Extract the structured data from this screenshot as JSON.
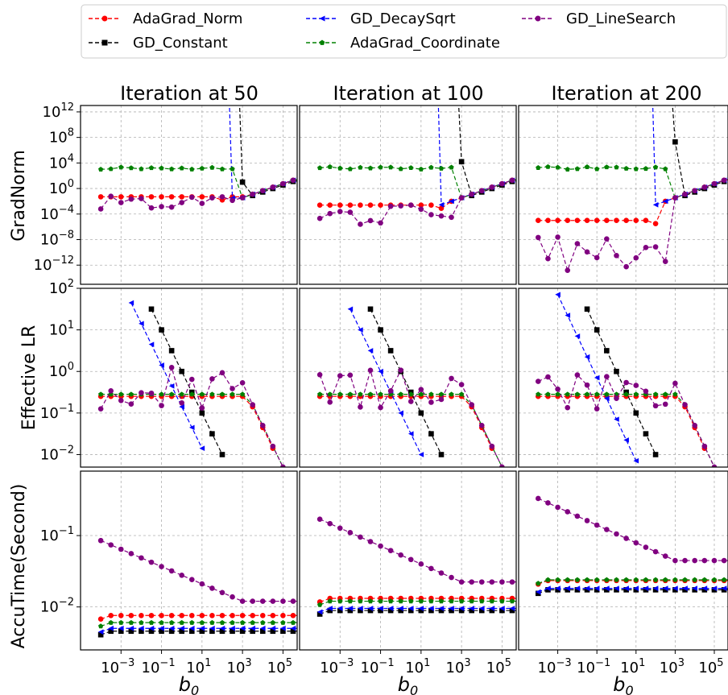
{
  "legend": [
    {
      "label": "AdaGrad_Norm",
      "color": "#ff0000",
      "marker": "circle"
    },
    {
      "label": "GD_DecaySqrt",
      "color": "#0000ff",
      "marker": "triangle-left"
    },
    {
      "label": "GD_LineSearch",
      "color": "#800080",
      "marker": "circle"
    },
    {
      "label": "GD_Constant",
      "color": "#000000",
      "marker": "square"
    },
    {
      "label": "AdaGrad_Coordinate",
      "color": "#008000",
      "marker": "pentagon"
    }
  ],
  "columns": [
    "Iteration at 50",
    "Iteration at 100",
    "Iteration at 200"
  ],
  "row_labels": [
    "GradNorm",
    "Effective LR",
    "AccuTime(Second)"
  ],
  "xlabel_base": "b",
  "xlabel_sub": "0",
  "xticks": [
    {
      "base": "10",
      "exp": "−3",
      "value": 0.001
    },
    {
      "base": "10",
      "exp": "−1",
      "value": 0.1
    },
    {
      "base": "10",
      "exp": "1",
      "value": 10
    },
    {
      "base": "10",
      "exp": "3",
      "value": 1000
    },
    {
      "base": "10",
      "exp": "5",
      "value": 100000
    }
  ],
  "yticks": {
    "grad": [
      {
        "base": "10",
        "exp": "12",
        "value": 1000000000000.0
      },
      {
        "base": "10",
        "exp": "8",
        "value": 100000000.0
      },
      {
        "base": "10",
        "exp": "4",
        "value": 10000.0
      },
      {
        "base": "10",
        "exp": "0",
        "value": 1
      },
      {
        "base": "10",
        "exp": "−4",
        "value": 0.0001
      },
      {
        "base": "10",
        "exp": "−8",
        "value": 1e-08
      },
      {
        "base": "10",
        "exp": "−12",
        "value": 1e-12
      }
    ],
    "lr": [
      {
        "base": "10",
        "exp": "2",
        "value": 100
      },
      {
        "base": "10",
        "exp": "1",
        "value": 10
      },
      {
        "base": "10",
        "exp": "0",
        "value": 1
      },
      {
        "base": "10",
        "exp": "−1",
        "value": 0.1
      },
      {
        "base": "10",
        "exp": "−2",
        "value": 0.01
      }
    ],
    "time": [
      {
        "base": "10",
        "exp": "−1",
        "value": 0.1
      },
      {
        "base": "10",
        "exp": "−2",
        "value": 0.01
      }
    ]
  },
  "chart_data": {
    "type": "line",
    "layout": "3x3 grid, shared x axis per column, shared y axis per row",
    "x_scale": "log",
    "y_scale": "log",
    "grid": true,
    "legend_placement": "top",
    "xlim": [
      1e-05,
      500000.0
    ],
    "ylim": {
      "grad": [
        1e-15,
        10000000000000.0
      ],
      "lr": [
        0.005,
        100
      ],
      "time": [
        0.0025,
        0.8
      ]
    },
    "x_points": "26 values of b0, 10^-4 to 10^5.5 in steps of 10^0.5 (GD_Constant and GD_DecaySqrt drawn only where finite)",
    "panels": [
      {
        "row": "GradNorm",
        "column": "Iteration at 50",
        "series": [
          {
            "name": "AdaGrad_Norm",
            "shape": "flat ~0.05 from 1e-4 to 1e2, dips to ~0.015 at 3e2, then rises to ~30 at 3e5"
          },
          {
            "name": "GD_DecaySqrt",
            "shape": "above 1e12 until 3e2, ~1e9 at 1e2, drops to ~0.01 at 3e2, then rises to ~30"
          },
          {
            "name": "GD_LineSearch",
            "shape": "oscillates between ~1e-3 and ~0.1, joins others above 1e3 rising to ~30"
          },
          {
            "name": "GD_Constant",
            "shape": "above 1e12 until 1e3, ~10 at 1e3, then rises to ~30"
          },
          {
            "name": "AdaGrad_Coordinate",
            "shape": "~1e3 to 3e3 from 1e-4 to 3e2, ~0.03 at 1e3, then rises to ~30"
          }
        ]
      },
      {
        "row": "GradNorm",
        "column": "Iteration at 100",
        "series": [
          {
            "name": "AdaGrad_Norm",
            "shape": "flat ~3e-3, dips to ~1e-3 at 1e2, then ~10 at 1e3 and rises to ~30"
          },
          {
            "name": "GD_DecaySqrt",
            "shape": "above 1e12 until 3e1, drops to ~1e-3 at 1e2, rises to ~30"
          },
          {
            "name": "GD_LineSearch",
            "shape": "oscillates between ~1e-7 and ~1e-3"
          },
          {
            "name": "GD_Constant",
            "shape": "~1e4 at 1e3, then drops and rises to ~30"
          },
          {
            "name": "AdaGrad_Coordinate",
            "shape": "~1e3 with fluctuations up to ~3e3"
          }
        ]
      },
      {
        "row": "GradNorm",
        "column": "Iteration at 200",
        "series": [
          {
            "name": "AdaGrad_Norm",
            "shape": "flat ~1e-5, dips to ~1e-6 at 1e2, then rises to ~30"
          },
          {
            "name": "GD_DecaySqrt",
            "shape": "above 1e12 until 3e1, drops to ~1e-5 at 1e2, rises to ~30"
          },
          {
            "name": "GD_LineSearch",
            "shape": "oscillates between ~1e-14 and ~1e-7"
          },
          {
            "name": "GD_Constant",
            "shape": "~1e7 at 1e3, then drops and rises to ~30"
          },
          {
            "name": "AdaGrad_Coordinate",
            "shape": "~1e3 with fluctuations"
          }
        ]
      },
      {
        "row": "Effective LR",
        "column": "Iteration at 50",
        "series": [
          {
            "name": "AdaGrad_Norm",
            "shape": "~0.25 flat until 3e3, then falls to ~0.005 at 3e5"
          },
          {
            "name": "GD_DecaySqrt",
            "shape": "~1/(b0*sqrt(50)), ~100 at 3e0 falling to ~0.005"
          },
          {
            "name": "GD_LineSearch",
            "shape": "oscillates between ~0.1 and ~1.4"
          },
          {
            "name": "GD_Constant",
            "shape": "1/b0, ~100 at 1e1 falling to ~0.005 at 3e5"
          },
          {
            "name": "AdaGrad_Coordinate",
            "shape": "~0.28 flat until 3e3, then falls"
          }
        ]
      },
      {
        "row": "Effective LR",
        "column": "Iteration at 100",
        "series": [
          {
            "name": "AdaGrad_Norm",
            "shape": "~0.25 flat until 3e3, then falls"
          },
          {
            "name": "GD_DecaySqrt",
            "shape": "~1/(b0*sqrt(100)), falling"
          },
          {
            "name": "GD_LineSearch",
            "shape": "oscillates between ~0.1 and ~1.2"
          },
          {
            "name": "GD_Constant",
            "shape": "1/b0, falling"
          },
          {
            "name": "AdaGrad_Coordinate",
            "shape": "~0.28 flat, then falls"
          }
        ]
      },
      {
        "row": "Effective LR",
        "column": "Iteration at 200",
        "series": [
          {
            "name": "AdaGrad_Norm",
            "shape": "~0.25 flat until 3e3, then falls"
          },
          {
            "name": "GD_DecaySqrt",
            "shape": "~1/(b0*sqrt(200)), falling"
          },
          {
            "name": "GD_LineSearch",
            "shape": "oscillates between ~0.1 and ~1.2"
          },
          {
            "name": "GD_Constant",
            "shape": "1/b0, falling"
          },
          {
            "name": "AdaGrad_Coordinate",
            "shape": "~0.28 flat, then falls"
          }
        ]
      },
      {
        "row": "AccuTime(Second)",
        "column": "Iteration at 50",
        "series": [
          {
            "name": "AdaGrad_Norm",
            "shape": "~0.0065 rising to ~0.0075"
          },
          {
            "name": "GD_DecaySqrt",
            "shape": "~0.005"
          },
          {
            "name": "GD_LineSearch",
            "shape": "0.085 at 1e-4 decreasing to 0.012 at 1e3, flat after"
          },
          {
            "name": "GD_Constant",
            "shape": "~0.0045"
          },
          {
            "name": "AdaGrad_Coordinate",
            "shape": "~0.006"
          }
        ]
      },
      {
        "row": "AccuTime(Second)",
        "column": "Iteration at 100",
        "series": [
          {
            "name": "AdaGrad_Norm",
            "shape": "~0.013"
          },
          {
            "name": "GD_DecaySqrt",
            "shape": "~0.0095"
          },
          {
            "name": "GD_LineSearch",
            "shape": "0.17 at 1e-4 decreasing to 0.022 at 1e3, flat after"
          },
          {
            "name": "GD_Constant",
            "shape": "~0.009"
          },
          {
            "name": "AdaGrad_Coordinate",
            "shape": "~0.012"
          }
        ]
      },
      {
        "row": "AccuTime(Second)",
        "column": "Iteration at 200",
        "series": [
          {
            "name": "AdaGrad_Norm",
            "shape": "~0.023"
          },
          {
            "name": "GD_DecaySqrt",
            "shape": "~0.018"
          },
          {
            "name": "GD_LineSearch",
            "shape": "0.33 at 1e-4 decreasing to 0.045 at 1e3, flat after"
          },
          {
            "name": "GD_Constant",
            "shape": "~0.017"
          },
          {
            "name": "AdaGrad_Coordinate",
            "shape": "~0.024"
          }
        ]
      }
    ]
  }
}
